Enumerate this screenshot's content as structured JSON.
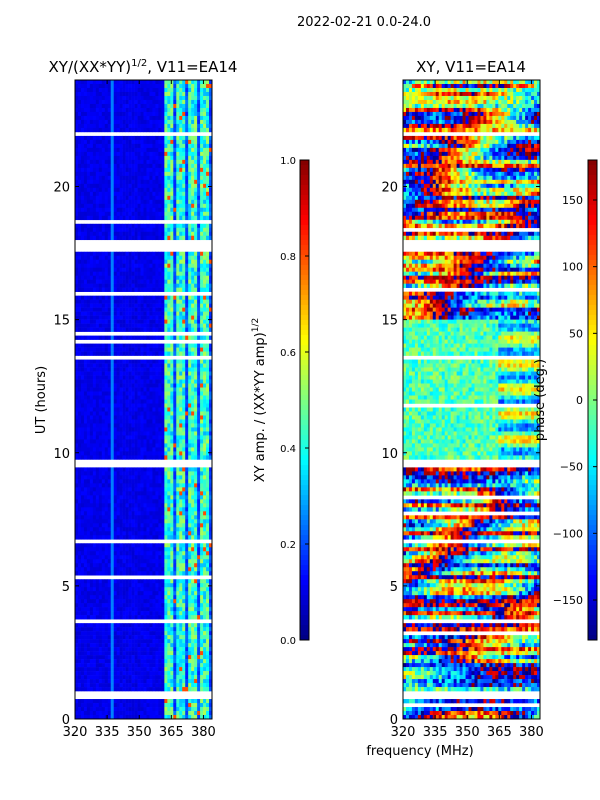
{
  "chart_data": {
    "type": "heatmap",
    "suptitle": "2022-02-21 0.0-24.0",
    "shared_xlabel": "frequency (MHz)",
    "panels": [
      {
        "title": "XY/(XX*YY)^1/2, V11=EA14",
        "title_main": "XY/(XX*YY)",
        "title_sup": "1/2",
        "title_tail": ", V11=EA14",
        "ylabel": "UT (hours)",
        "xlim": [
          320,
          384
        ],
        "ylim": [
          0,
          24
        ],
        "xticks": [
          "320",
          "335",
          "350",
          "365",
          "380"
        ],
        "xtick_values": [
          320,
          335,
          350,
          365,
          380
        ],
        "yticks": [
          "0",
          "5",
          "10",
          "15",
          "20"
        ],
        "ytick_values": [
          0,
          5,
          10,
          15,
          20
        ],
        "colormap": "jet",
        "colorbar": {
          "label": "XY amp. / (XX*YY amp)^1/2",
          "label_main": "XY amp. / (XX*YY amp)",
          "label_sup": "1/2",
          "range": [
            0.0,
            1.0
          ],
          "ticks": [
            "0.0",
            "0.2",
            "0.4",
            "0.6",
            "0.8",
            "1.0"
          ],
          "tick_values": [
            0,
            0.2,
            0.4,
            0.6,
            0.8,
            1.0
          ]
        },
        "description_values": {
          "background_level": 0.1,
          "band_start_mhz": 362,
          "band_level": 0.4
        }
      },
      {
        "title": "XY, V11=EA14",
        "xlim": [
          320,
          384
        ],
        "ylim": [
          0,
          24
        ],
        "xticks": [
          "320",
          "335",
          "350",
          "365",
          "380"
        ],
        "xtick_values": [
          320,
          335,
          350,
          365,
          380
        ],
        "yticks": [
          "0",
          "5",
          "10",
          "15",
          "20"
        ],
        "ytick_values": [
          0,
          5,
          10,
          15,
          20
        ],
        "colormap": "jet",
        "colorbar": {
          "label": "phase (deg.)",
          "range": [
            -180,
            180
          ],
          "ticks": [
            "150",
            "100",
            "50",
            "0",
            "−50",
            "−100",
            "−150"
          ],
          "tick_values": [
            150,
            100,
            50,
            0,
            -50,
            -100,
            -150
          ]
        }
      }
    ],
    "missing_hours": [
      [
        0.75,
        1.05
      ],
      [
        9.45,
        9.75
      ],
      [
        17.5,
        18.0
      ],
      [
        21.9,
        22.1
      ],
      [
        16.3,
        16.4
      ],
      [
        3.6,
        3.7
      ],
      [
        6.6,
        6.7
      ],
      [
        13.5,
        13.6
      ],
      [
        19.0,
        19.1
      ]
    ]
  }
}
